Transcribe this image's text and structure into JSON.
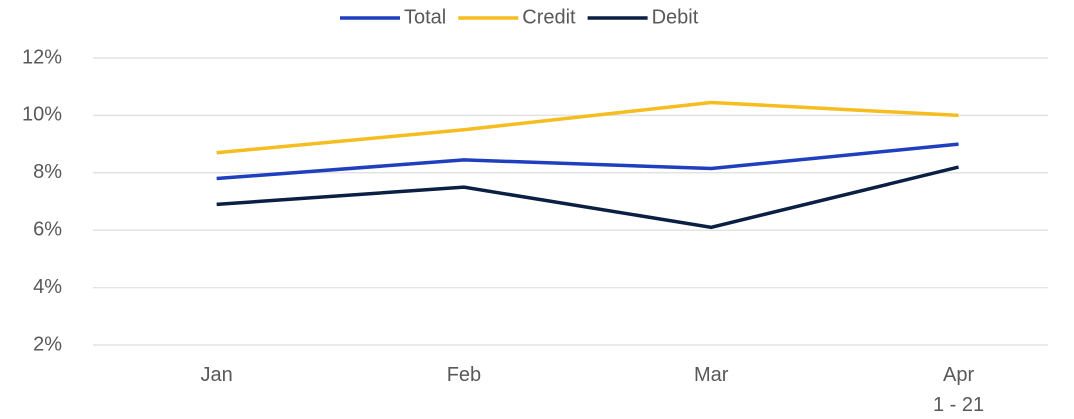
{
  "chart_data": {
    "type": "line",
    "categories": [
      "Jan",
      "Feb",
      "Mar",
      "Apr\n1 - 21"
    ],
    "series": [
      {
        "name": "Total",
        "color": "#1f3fbf",
        "values": [
          7.8,
          8.45,
          8.15,
          9.0
        ]
      },
      {
        "name": "Credit",
        "color": "#f5bd1f",
        "values": [
          8.7,
          9.5,
          10.45,
          10.0
        ]
      },
      {
        "name": "Debit",
        "color": "#0b1f45",
        "values": [
          6.9,
          7.5,
          6.1,
          8.2
        ]
      }
    ],
    "ylim": [
      2,
      12
    ],
    "yticks": [
      {
        "value": 2,
        "label": "2%"
      },
      {
        "value": 4,
        "label": "4%"
      },
      {
        "value": 6,
        "label": "6%"
      },
      {
        "value": 8,
        "label": "8%"
      },
      {
        "value": 10,
        "label": "10%"
      },
      {
        "value": 12,
        "label": "12%"
      }
    ],
    "grid": true,
    "legend": "top"
  }
}
